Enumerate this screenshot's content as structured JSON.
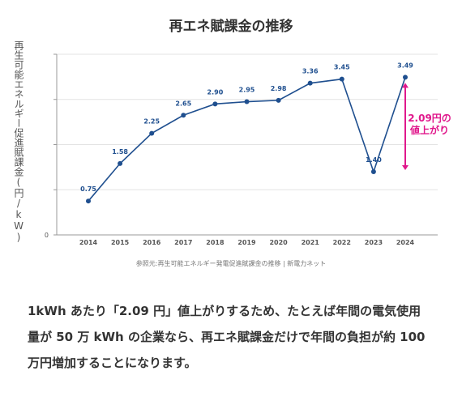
{
  "chart_data": {
    "type": "line",
    "title": "再エネ賦課金の推移",
    "ylabel": "再生可能エネルギー促進賦課金(円/kW)",
    "categories": [
      "2014",
      "2015",
      "2016",
      "2017",
      "2018",
      "2019",
      "2020",
      "2021",
      "2022",
      "2023",
      "2024"
    ],
    "values": [
      0.75,
      1.58,
      2.25,
      2.65,
      2.9,
      2.95,
      2.98,
      3.36,
      3.45,
      1.4,
      3.49
    ],
    "value_labels": [
      "0.75",
      "1.58",
      "2.25",
      "2.65",
      "2.90",
      "2.95",
      "2.98",
      "3.36",
      "3.45",
      "1.40",
      "3.49"
    ],
    "ylim": [
      0,
      4
    ],
    "yticks": [
      0,
      1,
      2,
      3,
      4
    ],
    "ytick_labels": [
      "0",
      "",
      "",
      "",
      ""
    ],
    "grid": "horizontal",
    "annotation": {
      "text": [
        "2.09円の",
        "値上がり"
      ],
      "from": 1.4,
      "to": 3.49,
      "category": "2024"
    },
    "colors": {
      "line": "#1f4f8f",
      "marker": "#1f4f8f",
      "label": "#1f4f8f",
      "annotation": "#e0188c",
      "grid": "#e3e3e3",
      "axis": "#999999"
    }
  },
  "source": "参照元:再生可能エネルギー発電促進賦課金の推移 | 新電力ネット",
  "caption": "1kWh あたり「2.09 円」値上がりするため、たとえば年間の電気使用量が 50 万 kWh の企業なら、再エネ賦課金だけで年間の負担が約 100 万円増加することになります。"
}
